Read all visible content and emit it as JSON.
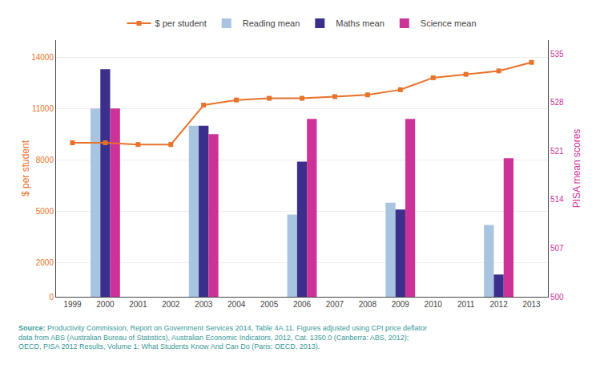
{
  "chart_data": {
    "type": "bar",
    "ylabel": "$ per student",
    "y2label": "PISA mean scores",
    "xlim": [
      1998.5,
      2013.5
    ],
    "xticks": [
      1999,
      2000,
      2001,
      2002,
      2003,
      2004,
      2005,
      2006,
      2007,
      2008,
      2009,
      2010,
      2011,
      2012,
      2013
    ],
    "ylim": [
      0,
      15000
    ],
    "yticks": [
      0,
      2000,
      5000,
      8000,
      11000,
      14000
    ],
    "y2lim": [
      500,
      537
    ],
    "y2ticks": [
      500,
      507,
      514,
      521,
      528,
      535
    ],
    "grid": true,
    "legend": "top",
    "annotations": [
      "Source:",
      " Productivity Commission, Report on Government Services 2014, Table 4A.11. Figures adjusted using CPI price deflator\ndata from ABS (Australian Bureau of Statistics), Australian Economic Indicators, 2012, Cat. 1350.0 (Canberra: ABS, 2012);\nOECD, PISA 2012 Results, Volume 1: What Students Know And Can Do (Paris: OECD, 2013)."
    ],
    "series": [
      {
        "name": "$ per student",
        "type": "line",
        "marker": "square",
        "color": "#E8722A",
        "x": [
          1999,
          2000,
          2001,
          2002,
          2003,
          2004,
          2005,
          2006,
          2007,
          2008,
          2009,
          2010,
          2011,
          2012,
          2013
        ],
        "values": [
          9000,
          9000,
          8900,
          8900,
          11200,
          11500,
          11600,
          11600,
          11700,
          11800,
          12100,
          12800,
          13000,
          13200,
          13700
        ]
      },
      {
        "name": "Reading mean",
        "color": "#A8C4E0",
        "x": [
          2000,
          2003,
          2006,
          2009,
          2012
        ],
        "values": [
          11000,
          10000,
          4800,
          5500,
          4200
        ]
      },
      {
        "name": "Maths mean",
        "color": "#3B2F8C",
        "x": [
          2000,
          2003,
          2006,
          2009,
          2012
        ],
        "values": [
          13300,
          10000,
          7900,
          5100,
          1300
        ]
      },
      {
        "name": "Science mean",
        "color": "#CC3399",
        "x": [
          2000,
          2003,
          2006,
          2009,
          2012
        ],
        "values": [
          11000,
          9500,
          10400,
          10400,
          8100
        ]
      }
    ]
  }
}
